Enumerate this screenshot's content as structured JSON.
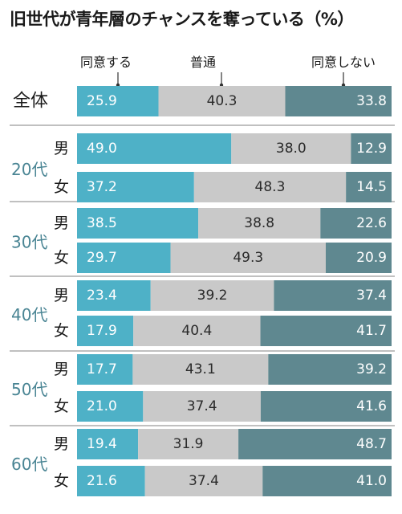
{
  "chart_data": {
    "type": "bar",
    "orientation": "horizontal",
    "stacked": true,
    "normalized": true,
    "title": "旧世代が青年層のチャンスを奪っている（%）",
    "series": [
      {
        "name": "同意する",
        "color": "#4eb1c7"
      },
      {
        "name": "普通",
        "color": "#c9c9c9"
      },
      {
        "name": "同意しない",
        "color": "#5f8890"
      }
    ],
    "groups": [
      {
        "label": "全体",
        "rows": [
          {
            "label": "",
            "values": [
              25.9,
              40.3,
              33.8
            ]
          }
        ]
      },
      {
        "label": "20代",
        "rows": [
          {
            "label": "男",
            "values": [
              49.0,
              38.0,
              12.9
            ]
          },
          {
            "label": "女",
            "values": [
              37.2,
              48.3,
              14.5
            ]
          }
        ]
      },
      {
        "label": "30代",
        "rows": [
          {
            "label": "男",
            "values": [
              38.5,
              38.8,
              22.6
            ]
          },
          {
            "label": "女",
            "values": [
              29.7,
              49.3,
              20.9
            ]
          }
        ]
      },
      {
        "label": "40代",
        "rows": [
          {
            "label": "男",
            "values": [
              23.4,
              39.2,
              37.4
            ]
          },
          {
            "label": "女",
            "values": [
              17.9,
              40.4,
              41.7
            ]
          }
        ]
      },
      {
        "label": "50代",
        "rows": [
          {
            "label": "男",
            "values": [
              17.7,
              43.1,
              39.2
            ]
          },
          {
            "label": "女",
            "values": [
              21.0,
              37.4,
              41.6
            ]
          }
        ]
      },
      {
        "label": "60代",
        "rows": [
          {
            "label": "男",
            "values": [
              19.4,
              31.9,
              48.7
            ]
          },
          {
            "label": "女",
            "values": [
              21.6,
              37.4,
              41.0
            ]
          }
        ]
      }
    ],
    "grid": false,
    "legend": "top"
  }
}
